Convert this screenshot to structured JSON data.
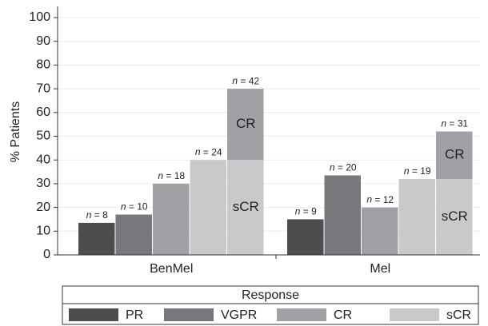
{
  "chart_data": {
    "type": "bar",
    "y_label": "% Patients",
    "categories": [
      "BenMel",
      "Mel"
    ],
    "ylim": [
      0,
      100
    ],
    "yticks": [
      0,
      10,
      20,
      30,
      40,
      50,
      60,
      70,
      80,
      90,
      100
    ],
    "grid": true,
    "series": [
      {
        "name": "PR",
        "color": "#4d4d4f",
        "values": [
          13.5,
          15
        ],
        "n_labels": [
          "n = 8",
          "n = 9"
        ]
      },
      {
        "name": "VGPR",
        "color": "#77787b",
        "values": [
          17,
          33.5
        ],
        "n_labels": [
          "n = 10",
          "n = 20"
        ]
      },
      {
        "name": "CR",
        "color": "#a0a1a4",
        "values": [
          30,
          20
        ],
        "n_labels": [
          "n = 18",
          "n = 12"
        ]
      },
      {
        "name": "sCR",
        "color": "#c8c9cb",
        "values": [
          40,
          32
        ],
        "n_labels": [
          "n = 24",
          "n = 19"
        ]
      }
    ],
    "combined": {
      "segments": [
        {
          "label": "sCR",
          "color": "#c8c9cb",
          "values": [
            40,
            32
          ]
        },
        {
          "label": "CR",
          "color": "#a0a1a4",
          "values": [
            30,
            20
          ]
        }
      ],
      "n_labels": [
        "n = 42",
        "n = 31"
      ]
    },
    "legend_title": "Response"
  }
}
